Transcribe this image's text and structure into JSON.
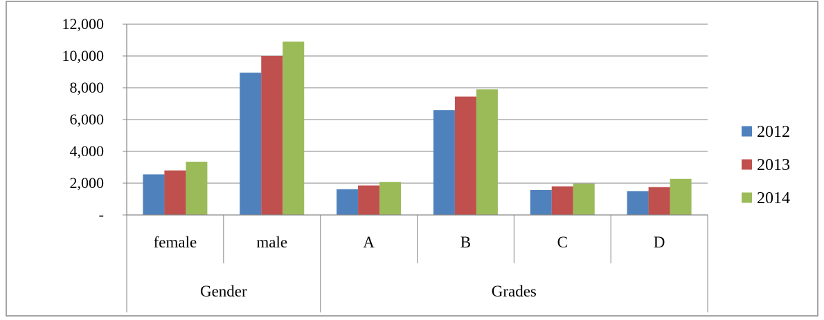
{
  "chart_data": {
    "type": "bar",
    "title": "",
    "xlabel": "",
    "ylabel": "",
    "ylim": [
      0,
      12000
    ],
    "y_ticks": [
      0,
      2000,
      4000,
      6000,
      8000,
      10000,
      12000
    ],
    "y_tick_labels": [
      "-",
      "2,000",
      "4,000",
      "6,000",
      "8,000",
      "10,000",
      "12,000"
    ],
    "grid": true,
    "legend_position": "right",
    "categories": [
      "female",
      "male",
      "A",
      "B",
      "C",
      "D"
    ],
    "groups": [
      {
        "label": "Gender",
        "categories": [
          "female",
          "male"
        ]
      },
      {
        "label": "Grades",
        "categories": [
          "A",
          "B",
          "C",
          "D"
        ]
      }
    ],
    "series": [
      {
        "name": "2012",
        "color": "#4F81BD",
        "values": [
          2550,
          8950,
          1620,
          6600,
          1570,
          1500
        ]
      },
      {
        "name": "2013",
        "color": "#C0504D",
        "values": [
          2800,
          10000,
          1850,
          7450,
          1800,
          1750
        ]
      },
      {
        "name": "2014",
        "color": "#9BBB59",
        "values": [
          3350,
          10900,
          2080,
          7900,
          1970,
          2270
        ]
      }
    ]
  }
}
